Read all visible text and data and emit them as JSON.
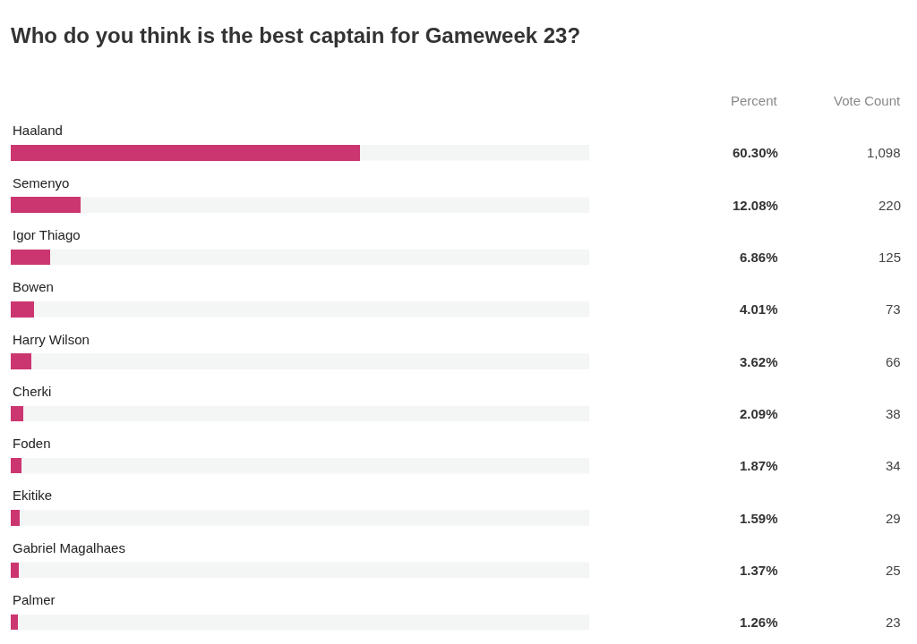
{
  "chart_data": {
    "type": "bar",
    "orientation": "horizontal",
    "title": "Who do you think is the best captain for Gameweek 23?",
    "categories": [
      "Haaland",
      "Semenyo",
      "Igor Thiago",
      "Bowen",
      "Harry Wilson",
      "Cherki",
      "Foden",
      "Ekitike",
      "Gabriel Magalhaes",
      "Palmer"
    ],
    "values": [
      60.3,
      12.08,
      6.86,
      4.01,
      3.62,
      2.09,
      1.87,
      1.59,
      1.37,
      1.26
    ],
    "value_labels": [
      "60.30%",
      "12.08%",
      "6.86%",
      "4.01%",
      "3.62%",
      "2.09%",
      "1.87%",
      "1.59%",
      "1.37%",
      "1.26%"
    ],
    "color": "#cc3670",
    "xlim": [
      0,
      100
    ],
    "tick_labels": false,
    "grid": false,
    "legend": false,
    "annotations": [
      "Percent",
      "Vote Count",
      "1,098",
      "220",
      "125",
      "73",
      "66",
      "38",
      "34",
      "29",
      "25",
      "23"
    ]
  }
}
